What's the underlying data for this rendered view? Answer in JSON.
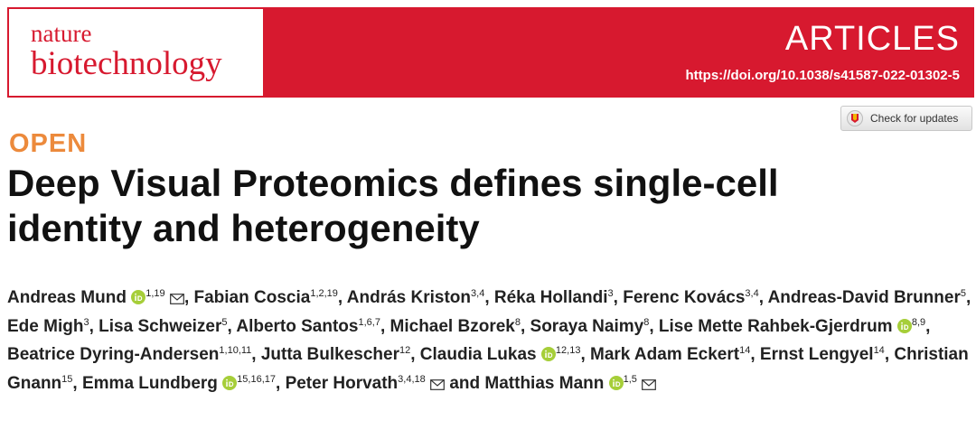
{
  "header": {
    "journal_line1": "nature",
    "journal_line2": "biotechnology",
    "section": "ARTICLES",
    "doi": "https://doi.org/10.1038/s41587-022-01302-5"
  },
  "check_updates": "Check for updates",
  "label": "OPEN",
  "title": "Deep Visual Proteomics defines single-cell identity and heterogeneity",
  "separator": ",",
  "conjunction": "and",
  "authors": [
    {
      "name": "Andreas Mund",
      "orcid": true,
      "affiliations": "1,19",
      "email": true
    },
    {
      "name": "Fabian Coscia",
      "orcid": false,
      "affiliations": "1,2,19",
      "email": false
    },
    {
      "name": "András Kriston",
      "orcid": false,
      "affiliations": "3,4",
      "email": false
    },
    {
      "name": "Réka Hollandi",
      "orcid": false,
      "affiliations": "3",
      "email": false
    },
    {
      "name": "Ferenc Kovács",
      "orcid": false,
      "affiliations": "3,4",
      "email": false
    },
    {
      "name": "Andreas-David Brunner",
      "orcid": false,
      "affiliations": "5",
      "email": false
    },
    {
      "name": "Ede Migh",
      "orcid": false,
      "affiliations": "3",
      "email": false
    },
    {
      "name": "Lisa Schweizer",
      "orcid": false,
      "affiliations": "5",
      "email": false
    },
    {
      "name": "Alberto Santos",
      "orcid": false,
      "affiliations": "1,6,7",
      "email": false
    },
    {
      "name": "Michael Bzorek",
      "orcid": false,
      "affiliations": "8",
      "email": false
    },
    {
      "name": "Soraya Naimy",
      "orcid": false,
      "affiliations": "8",
      "email": false
    },
    {
      "name": "Lise Mette Rahbek-Gjerdrum",
      "orcid": true,
      "affiliations": "8,9",
      "email": false
    },
    {
      "name": "Beatrice Dyring-Andersen",
      "orcid": false,
      "affiliations": "1,10,11",
      "email": false
    },
    {
      "name": "Jutta Bulkescher",
      "orcid": false,
      "affiliations": "12",
      "email": false
    },
    {
      "name": "Claudia Lukas",
      "orcid": true,
      "affiliations": "12,13",
      "email": false
    },
    {
      "name": "Mark Adam Eckert",
      "orcid": false,
      "affiliations": "14",
      "email": false
    },
    {
      "name": "Ernst Lengyel",
      "orcid": false,
      "affiliations": "14",
      "email": false
    },
    {
      "name": "Christian Gnann",
      "orcid": false,
      "affiliations": "15",
      "email": false
    },
    {
      "name": "Emma Lundberg",
      "orcid": true,
      "affiliations": "15,16,17",
      "email": false
    },
    {
      "name": "Peter Horvath",
      "orcid": false,
      "affiliations": "3,4,18",
      "email": true
    },
    {
      "name": "Matthias Mann",
      "orcid": true,
      "affiliations": "1,5",
      "email": true
    }
  ]
}
